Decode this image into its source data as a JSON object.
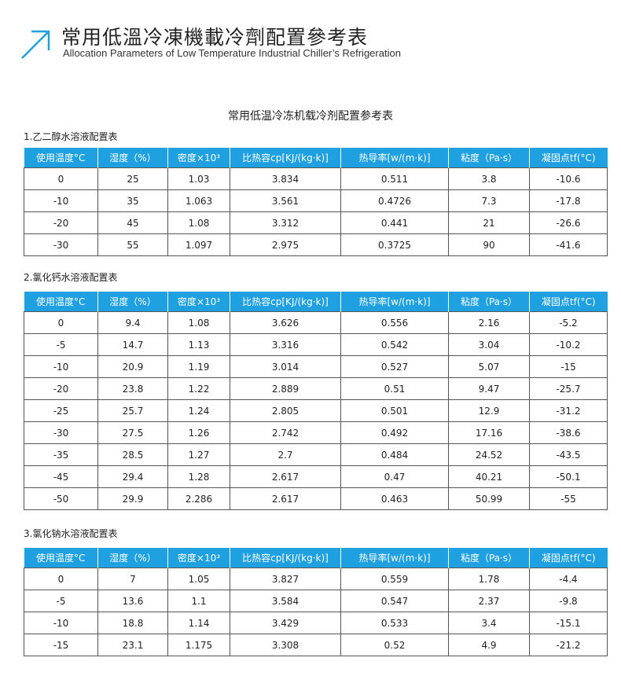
{
  "header": {
    "title_cn": "常用低溫冷凍機載冷劑配置參考表",
    "title_en": "Allocation Parameters of Low Temperature Industrial Chiller’s Refrigeration",
    "icon": "arrow-up-right-icon",
    "accent": "#1fa0e0"
  },
  "main_title": "常用低温冷冻机载冷剂配置参考表",
  "columns": [
    "使用温度°C",
    "湿度（%）",
    "密度×10³",
    "比热容cp[KJ/(kg·k)]",
    "热导率[w/(m·k)]",
    "粘度（Pa·s）",
    "凝固点tf(°C)"
  ],
  "tables": [
    {
      "title": "1.乙二醇水溶液配置表",
      "rows": [
        [
          "0",
          "25",
          "1.03",
          "3.834",
          "0.511",
          "3.8",
          "-10.6"
        ],
        [
          "-10",
          "35",
          "1.063",
          "3.561",
          "0.4726",
          "7.3",
          "-17.8"
        ],
        [
          "-20",
          "45",
          "1.08",
          "3.312",
          "0.441",
          "21",
          "-26.6"
        ],
        [
          "-30",
          "55",
          "1.097",
          "2.975",
          "0.3725",
          "90",
          "-41.6"
        ]
      ]
    },
    {
      "title": "2.氯化钙水溶液配置表",
      "rows": [
        [
          "0",
          "9.4",
          "1.08",
          "3.626",
          "0.556",
          "2.16",
          "-5.2"
        ],
        [
          "-5",
          "14.7",
          "1.13",
          "3.316",
          "0.542",
          "3.04",
          "-10.2"
        ],
        [
          "-10",
          "20.9",
          "1.19",
          "3.014",
          "0.527",
          "5.07",
          "-15"
        ],
        [
          "-20",
          "23.8",
          "1.22",
          "2.889",
          "0.51",
          "9.47",
          "-25.7"
        ],
        [
          "-25",
          "25.7",
          "1.24",
          "2.805",
          "0.501",
          "12.9",
          "-31.2"
        ],
        [
          "-30",
          "27.5",
          "1.26",
          "2.742",
          "0.492",
          "17.16",
          "-38.6"
        ],
        [
          "-35",
          "28.5",
          "1.27",
          "2.7",
          "0.484",
          "24.52",
          "-43.5"
        ],
        [
          "-45",
          "29.4",
          "1.28",
          "2.617",
          "0.47",
          "40.21",
          "-50.1"
        ],
        [
          "-50",
          "29.9",
          "2.286",
          "2.617",
          "0.463",
          "50.99",
          "-55"
        ]
      ]
    },
    {
      "title": "3.氯化钠水溶液配置表",
      "rows": [
        [
          "0",
          "7",
          "1.05",
          "3.827",
          "0.559",
          "1.78",
          "-4.4"
        ],
        [
          "-5",
          "13.6",
          "1.1",
          "3.584",
          "0.547",
          "2.37",
          "-9.8"
        ],
        [
          "-10",
          "18.8",
          "1.14",
          "3.429",
          "0.533",
          "3.4",
          "-15.1"
        ],
        [
          "-15",
          "23.1",
          "1.175",
          "3.308",
          "0.52",
          "4.9",
          "-21.2"
        ]
      ]
    }
  ]
}
